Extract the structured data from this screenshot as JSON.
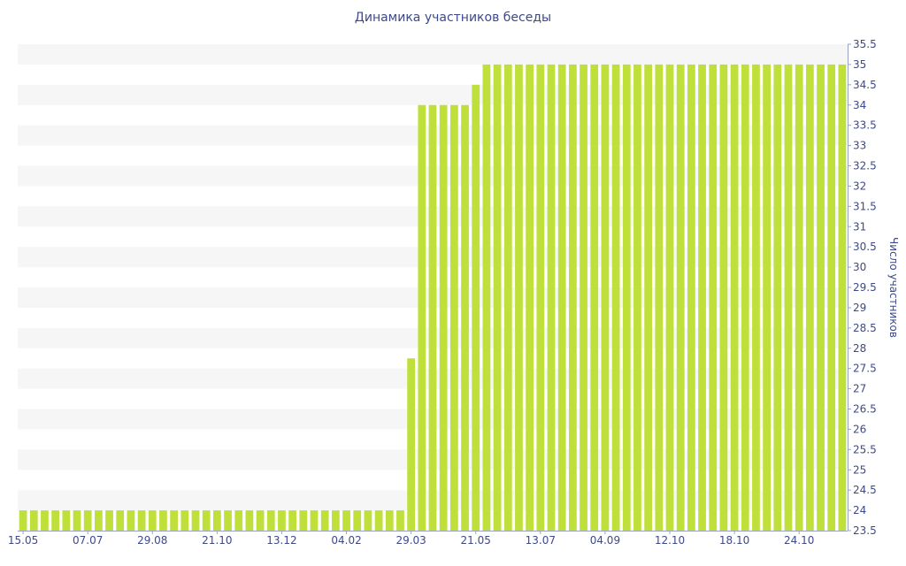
{
  "chart_data": {
    "type": "bar",
    "title": "Динамика участников беседы",
    "ylabel": "Число участников",
    "ylim": [
      23.5,
      35.5
    ],
    "ytick_step": 0.5,
    "grid": "horizontal alternating bands",
    "bar_color": "#bfe03a",
    "band_color": "#f6f6f6",
    "axis_color": "#9aa3c6",
    "text_color": "#3d4a8a",
    "x_tick_labels": [
      {
        "index": 0,
        "label": "15.05"
      },
      {
        "index": 6,
        "label": "07.07"
      },
      {
        "index": 12,
        "label": "29.08"
      },
      {
        "index": 18,
        "label": "21.10"
      },
      {
        "index": 24,
        "label": "13.12"
      },
      {
        "index": 30,
        "label": "04.02"
      },
      {
        "index": 36,
        "label": "29.03"
      },
      {
        "index": 42,
        "label": "21.05"
      },
      {
        "index": 48,
        "label": "13.07"
      },
      {
        "index": 54,
        "label": "04.09"
      },
      {
        "index": 60,
        "label": "12.10"
      },
      {
        "index": 66,
        "label": "18.10"
      },
      {
        "index": 72,
        "label": "24.10"
      }
    ],
    "values": [
      24,
      24,
      24,
      24,
      24,
      24,
      24,
      24,
      24,
      24,
      24,
      24,
      24,
      24,
      24,
      24,
      24,
      24,
      24,
      24,
      24,
      24,
      24,
      24,
      24,
      24,
      24,
      24,
      24,
      24,
      24,
      24,
      24,
      24,
      24,
      24,
      27.75,
      34,
      34,
      34,
      34,
      34,
      34.5,
      35,
      35,
      35,
      35,
      35,
      35,
      35,
      35,
      35,
      35,
      35,
      35,
      35,
      35,
      35,
      35,
      35,
      35,
      35,
      35,
      35,
      35,
      35,
      35,
      35,
      35,
      35,
      35,
      35,
      35,
      35,
      35,
      35,
      35
    ]
  }
}
